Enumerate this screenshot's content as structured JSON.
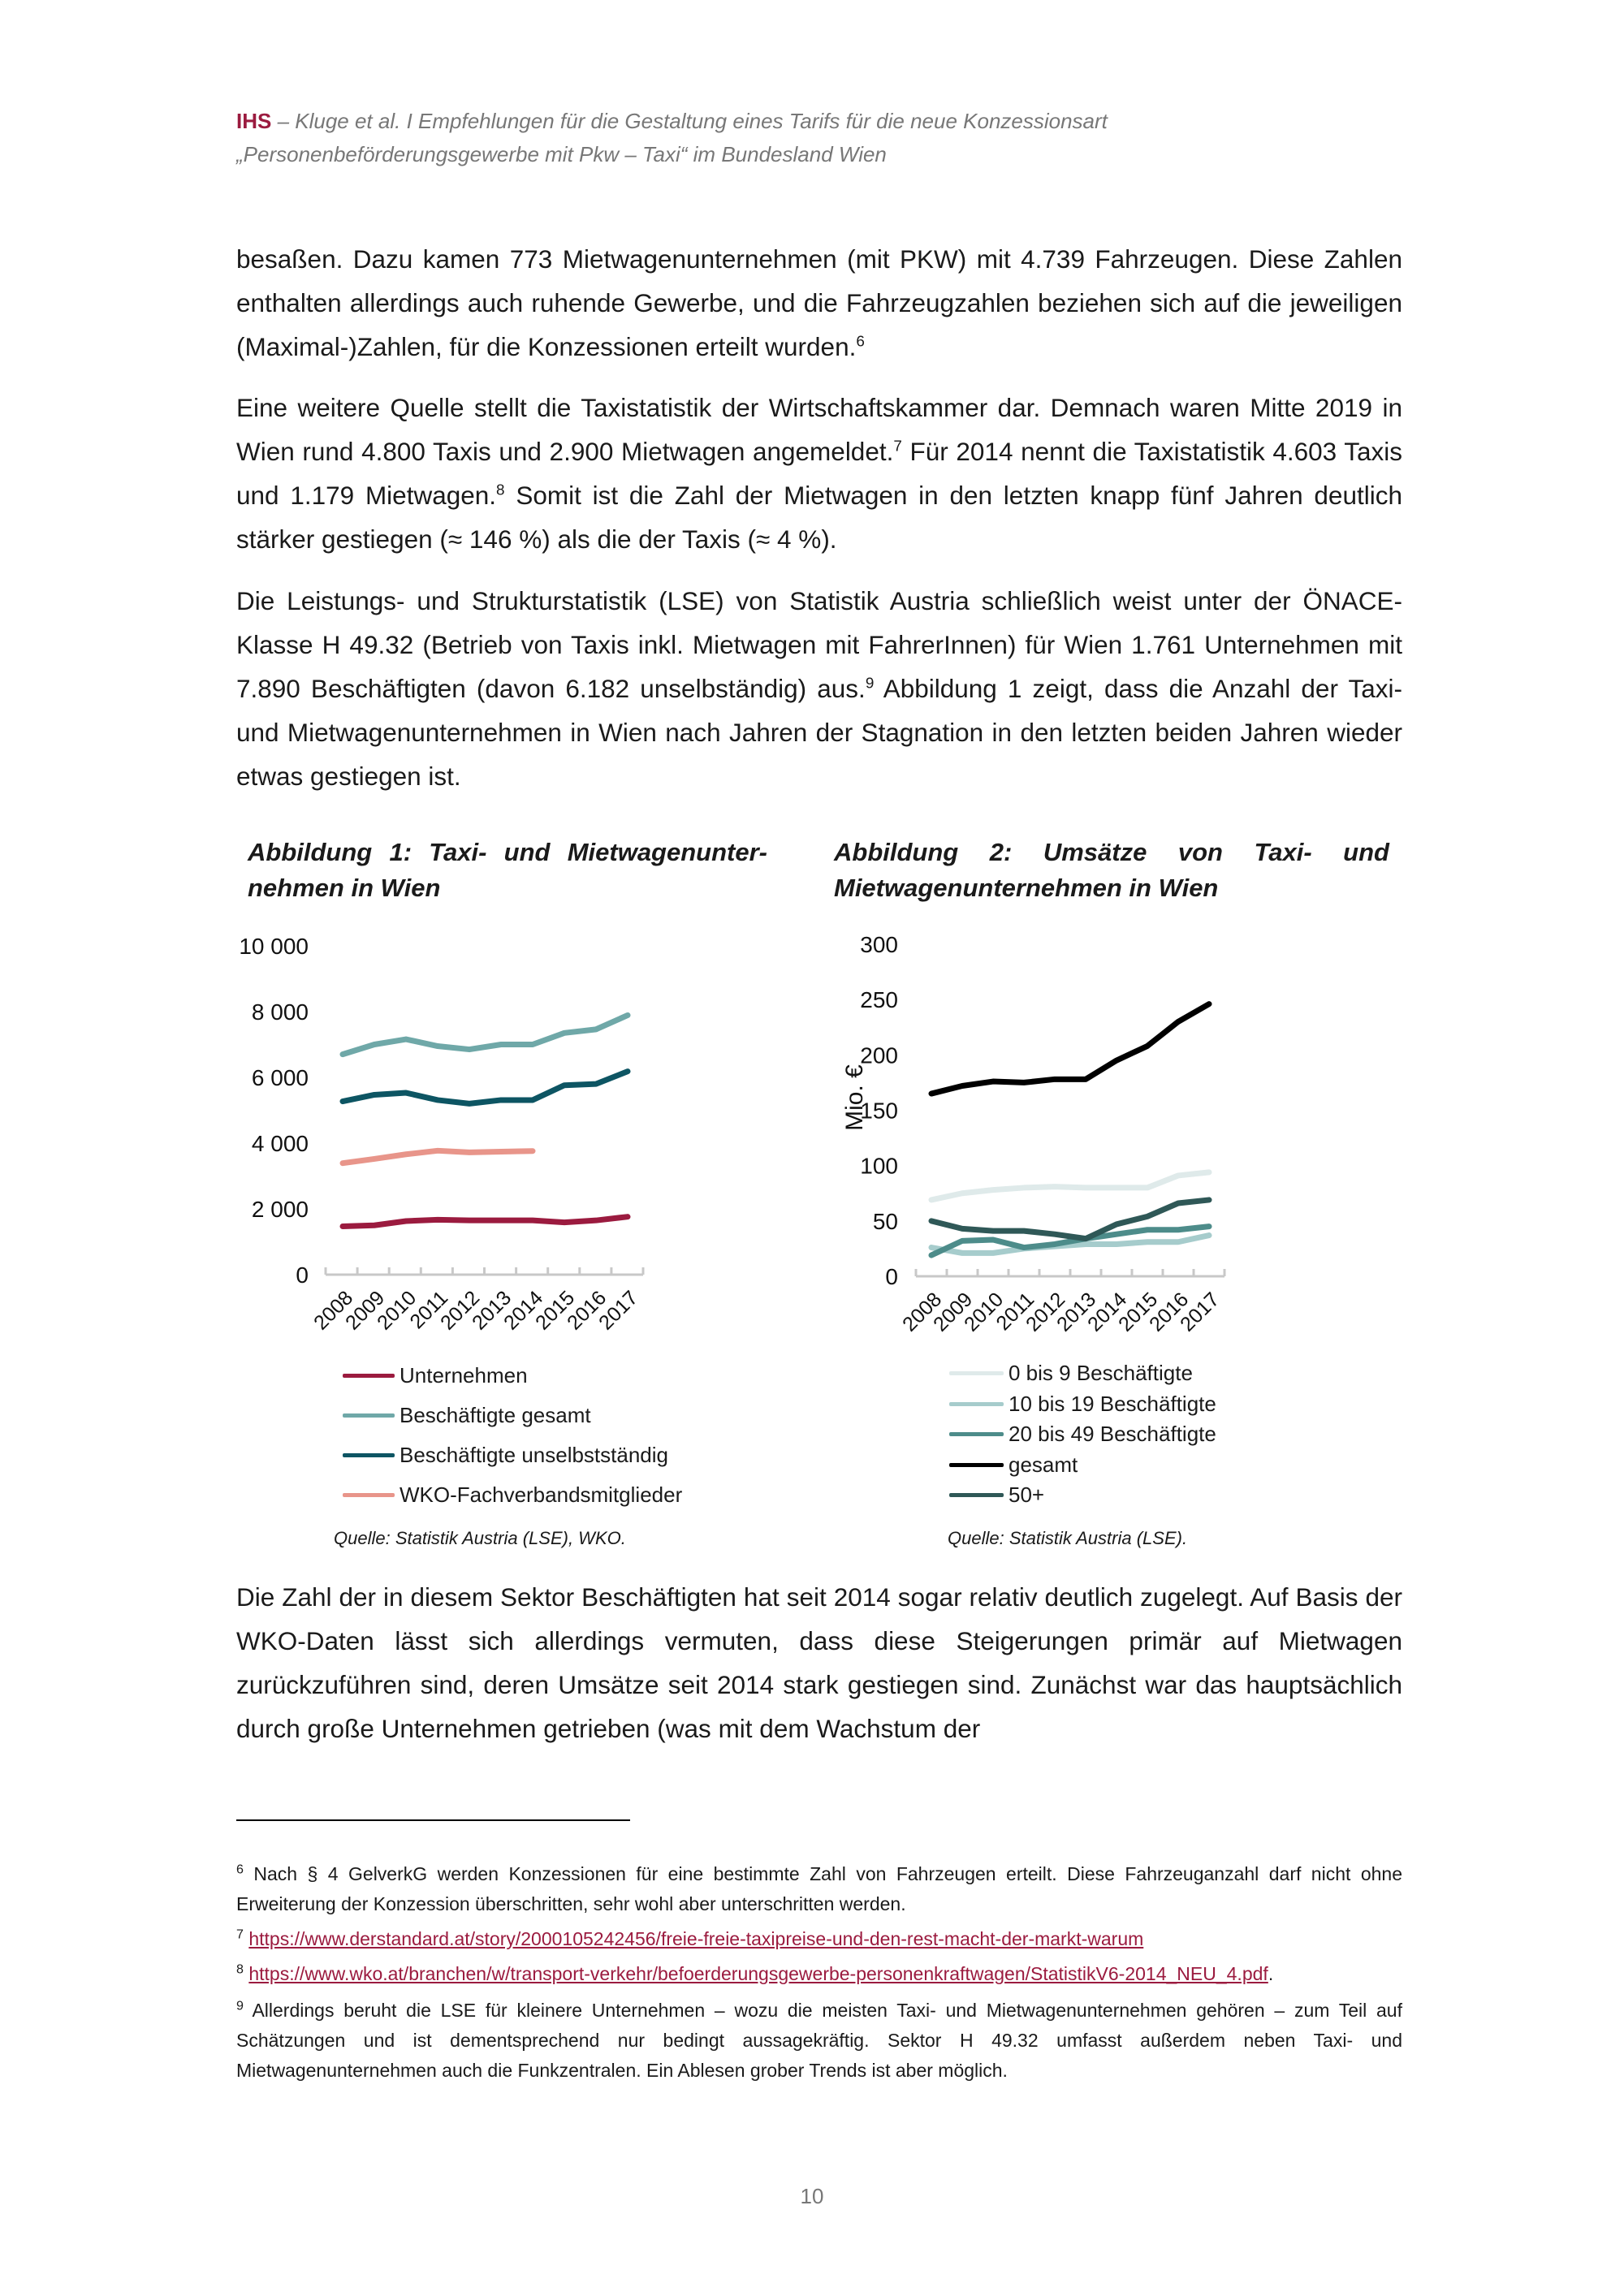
{
  "header": {
    "brand": "IHS",
    "line1": " – Kluge et al. I Empfehlungen für die Gestaltung eines Tarifs für die neue Konzessionsart",
    "line2": "„Personenbeförderungsgewerbe mit Pkw – Taxi“ im Bundesland Wien"
  },
  "paragraphs": {
    "p1": {
      "t1": "besaßen. Dazu kamen 773 Mietwagenunternehmen (mit PKW) mit 4.739 Fahrzeugen. Diese Zahlen enthalten allerdings auch ruhende Gewerbe, und die Fahrzeugzahlen beziehen sich auf die jeweiligen (Maximal-)Zahlen, für die Konzessionen erteilt wurden.",
      "s1": "6"
    },
    "p2": {
      "t1": "Eine weitere Quelle stellt die Taxistatistik der Wirtschaftskammer dar. Demnach waren Mitte 2019 in Wien rund 4.800 Taxis und 2.900 Mietwagen angemeldet.",
      "s1": "7",
      "t2": " Für 2014 nennt die Taxistatistik 4.603 Taxis und 1.179 Mietwagen.",
      "s2": "8",
      "t3": " Somit ist die Zahl der Mietwagen in den letzten knapp fünf Jahren deutlich stärker gestiegen (≈ 146 %) als die der Taxis (≈ 4 %)."
    },
    "p3": {
      "t1": "Die Leistungs- und Strukturstatistik (LSE) von Statistik Austria schließlich weist unter der ÖNACE-Klasse H 49.32 (Betrieb von Taxis inkl. Mietwagen mit FahrerInnen) für Wien 1.761 Unternehmen mit 7.890 Beschäftigten (davon 6.182 unselbständig) aus.",
      "s1": "9",
      "t2": " Abbildung 1 zeigt, dass die Anzahl der Taxi- und Mietwagenunternehmen in Wien nach Jahren der Stagnation in den letzten beiden Jahren wieder etwas gestiegen ist."
    },
    "p4": {
      "t1": "Die Zahl der in diesem Sektor Beschäftigten hat seit 2014 sogar relativ deutlich zugelegt. Auf Basis der WKO-Daten lässt sich allerdings vermuten, dass diese Steigerungen primär auf Mietwagen zurückzuführen sind, deren Umsätze seit 2014 stark gestiegen sind. Zunächst war das hauptsächlich durch große Unternehmen getrieben (was mit dem Wachstum der"
    }
  },
  "chart_data": [
    {
      "type": "line",
      "title": "Abbildung 1: Taxi- und Mietwagenunter-nehmen in Wien",
      "xlabel": "",
      "ylabel": "",
      "x": [
        "2008",
        "2009",
        "2010",
        "2011",
        "2012",
        "2013",
        "2014",
        "2015",
        "2016",
        "2017"
      ],
      "ylim": [
        0,
        10000
      ],
      "yticks": [
        "0",
        "2 000",
        "4 000",
        "6 000",
        "8 000",
        "10 000"
      ],
      "ytick_values": [
        0,
        2000,
        4000,
        6000,
        8000,
        10000
      ],
      "grid": false,
      "legend_position": "bottom",
      "series": [
        {
          "name": "Unternehmen",
          "color": "#9b1b3f",
          "values": [
            1470,
            1500,
            1630,
            1670,
            1650,
            1650,
            1650,
            1590,
            1650,
            1761
          ]
        },
        {
          "name": "Beschäftigte gesamt",
          "color": "#6fa8a8",
          "values": [
            6700,
            7000,
            7160,
            6950,
            6850,
            7000,
            7000,
            7350,
            7460,
            7890
          ]
        },
        {
          "name": "Beschäftigte unselbstständig",
          "color": "#0d5563",
          "values": [
            5270,
            5470,
            5530,
            5310,
            5200,
            5310,
            5310,
            5760,
            5800,
            6182
          ]
        },
        {
          "name": "WKO-Fachverbandsmitglieder",
          "color": "#e8958a",
          "values": [
            3390,
            3520,
            3660,
            3770,
            3720,
            3740,
            3760,
            null,
            null,
            null
          ]
        }
      ],
      "source": "Quelle: Statistik Austria (LSE), WKO."
    },
    {
      "type": "line",
      "title": "Abbildung 2: Umsätze von Taxi- und Mietwagenunternehmen in Wien",
      "xlabel": "",
      "ylabel": "Mio. €",
      "x": [
        "2008",
        "2009",
        "2010",
        "2011",
        "2012",
        "2013",
        "2014",
        "2015",
        "2016",
        "2017"
      ],
      "ylim": [
        0,
        300
      ],
      "yticks": [
        "0",
        "50",
        "100",
        "150",
        "200",
        "250",
        "300"
      ],
      "ytick_values": [
        0,
        50,
        100,
        150,
        200,
        250,
        300
      ],
      "grid": false,
      "legend_position": "bottom",
      "series": [
        {
          "name": "0 bis 9 Beschäftigte",
          "color": "#dfeaea",
          "values": [
            69,
            75,
            78,
            80,
            81,
            80,
            80,
            80,
            91,
            94
          ]
        },
        {
          "name": "10 bis 19 Beschäftigte",
          "color": "#a6cccc",
          "values": [
            26,
            21,
            21,
            25,
            27,
            29,
            29,
            31,
            31,
            37
          ]
        },
        {
          "name": "20 bis 49 Beschäftigte",
          "color": "#4d8c8a",
          "values": [
            19,
            32,
            33,
            26,
            29,
            34,
            38,
            42,
            42,
            45
          ]
        },
        {
          "name": "gesamt",
          "color": "#000000",
          "values": [
            165,
            172,
            176,
            175,
            178,
            178,
            195,
            208,
            230,
            246
          ]
        },
        {
          "name": "50+",
          "color": "#2f5857",
          "values": [
            50,
            43,
            41,
            41,
            38,
            34,
            47,
            54,
            66,
            69
          ]
        }
      ],
      "source": "Quelle: Statistik Austria (LSE)."
    }
  ],
  "footnotes": [
    {
      "num": "6",
      "text": "Nach § 4 GelverkG werden Konzessionen für eine bestimmte Zahl von Fahrzeugen erteilt. Diese Fahrzeuganzahl darf nicht ohne Erweiterung der Konzession überschritten, sehr wohl aber unterschritten werden."
    },
    {
      "num": "7",
      "link": "https://www.derstandard.at/story/2000105242456/freie-freie-taxipreise-und-den-rest-macht-der-markt-warum"
    },
    {
      "num": "8",
      "link": "https://www.wko.at/branchen/w/transport-verkehr/befoerderungsgewerbe-personenkraftwagen/StatistikV6-2014_NEU_4.pdf",
      "after": "."
    },
    {
      "num": "9",
      "text": "Allerdings beruht die LSE für kleinere Unternehmen – wozu die meisten Taxi- und Mietwagenunternehmen gehören – zum Teil auf Schätzungen und ist dementsprechend nur bedingt aussagekräftig. Sektor H 49.32 umfasst außerdem neben Taxi- und Mietwagenunternehmen auch die Funkzentralen. Ein Ablesen grober Trends ist aber möglich."
    }
  ],
  "page_number": "10"
}
